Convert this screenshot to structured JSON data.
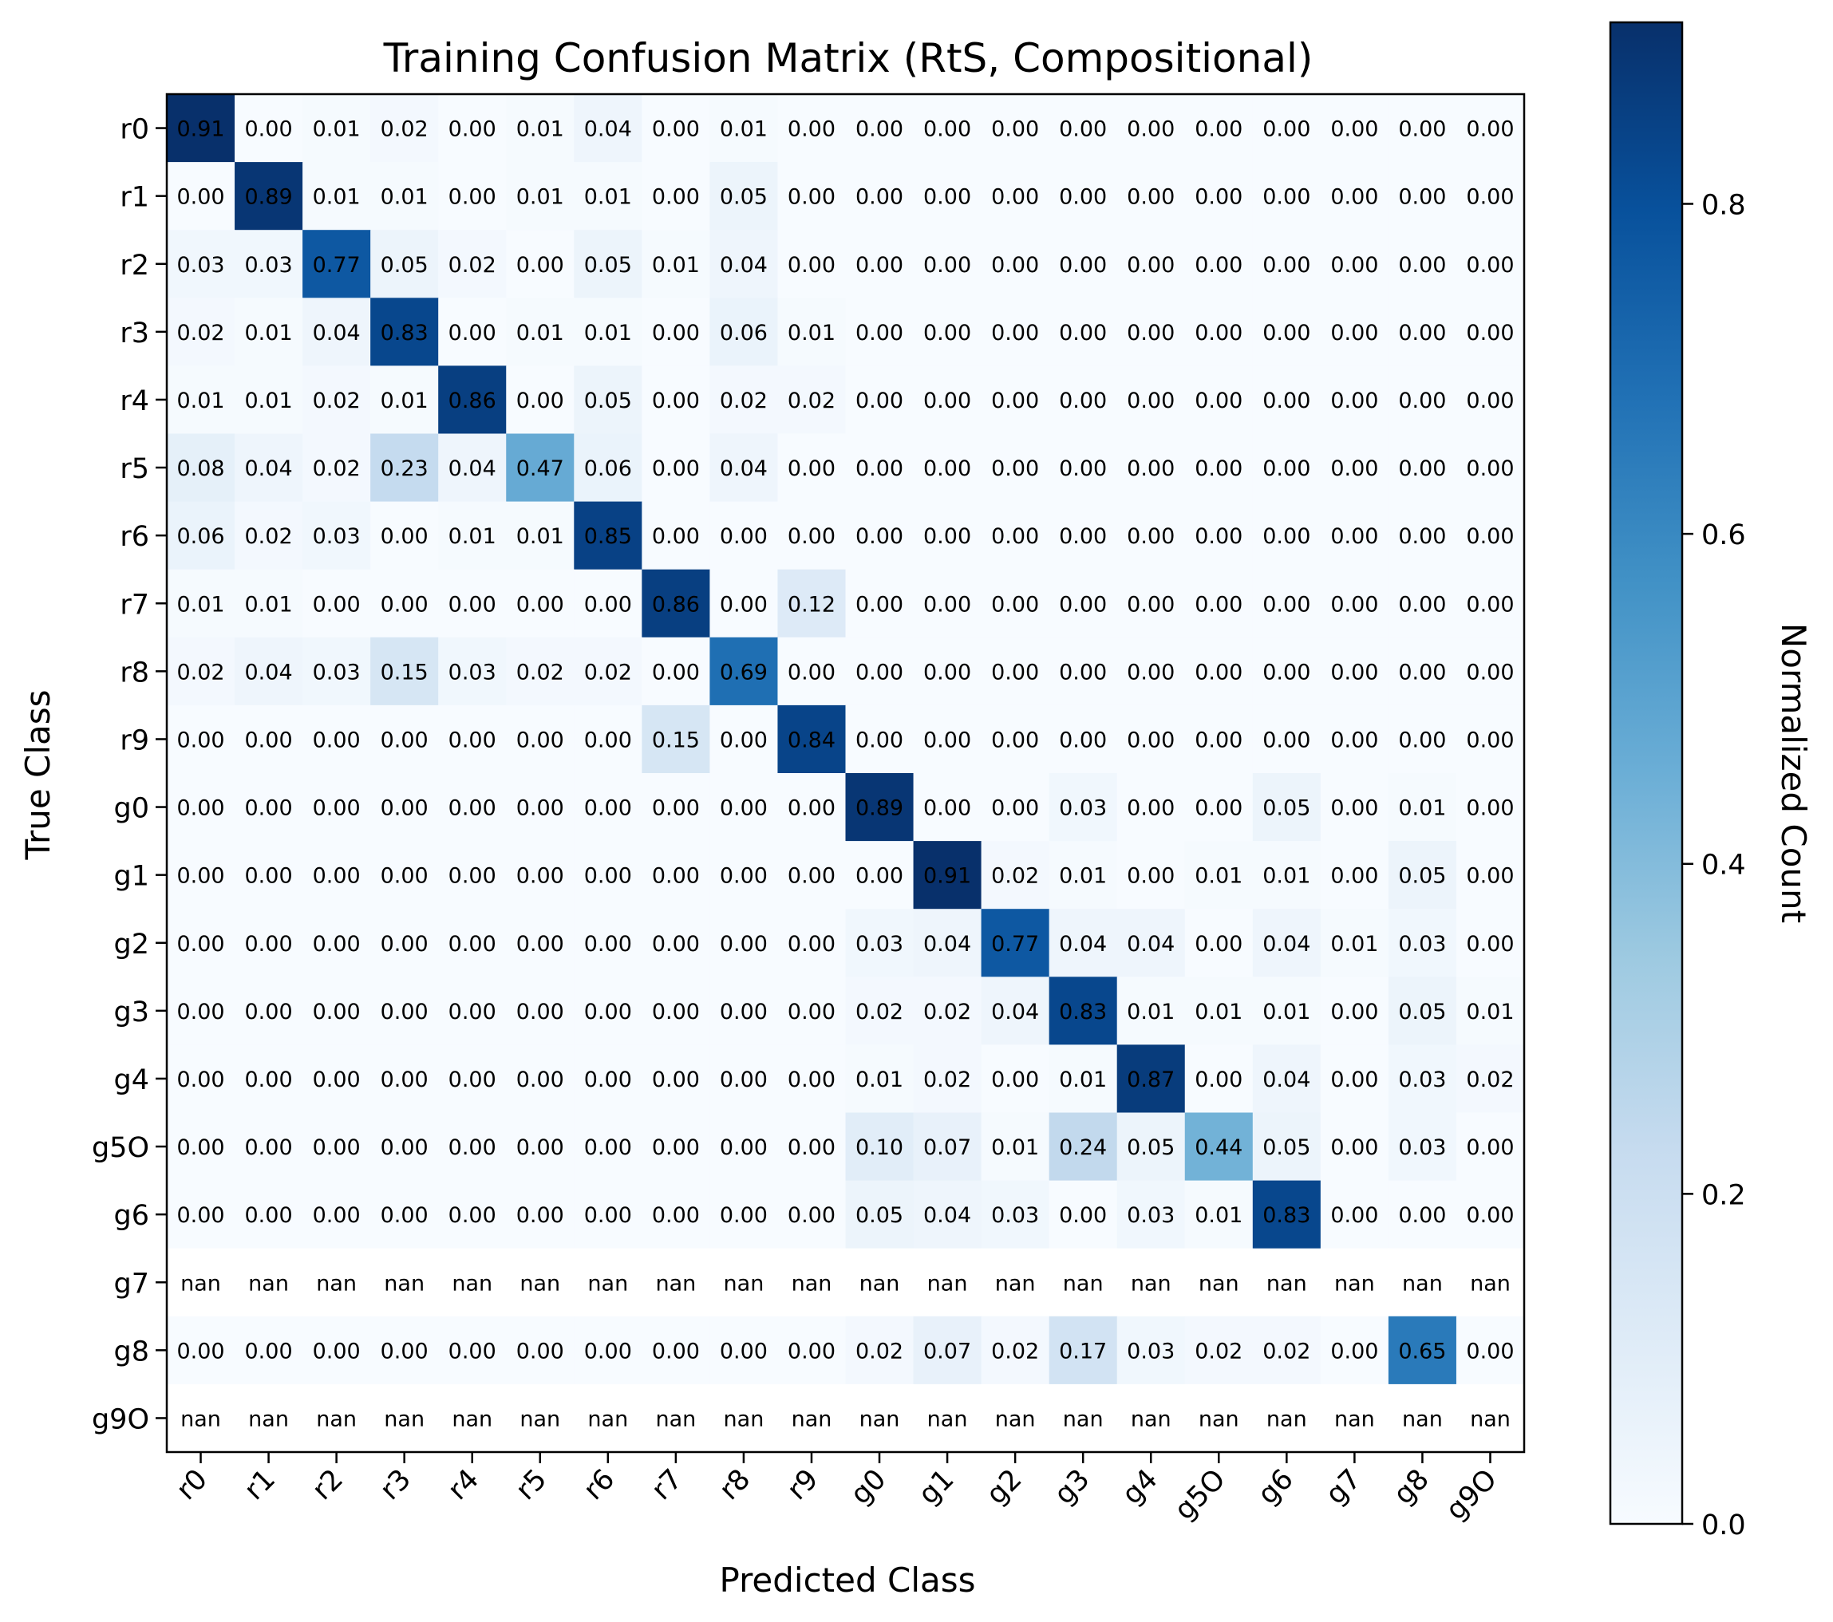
{
  "chart_data": {
    "type": "heatmap",
    "title": "Training Confusion Matrix (RtS, Compositional)",
    "xlabel": "Predicted Class",
    "ylabel": "True Class",
    "colorbar_label": "Normalized Count",
    "colormap": "Blues",
    "color_low": "#f7fbff",
    "color_high": "#08306b",
    "vlim": [
      0.0,
      0.91
    ],
    "colorbar_ticks": [
      "0.0",
      "0.2",
      "0.4",
      "0.6",
      "0.8"
    ],
    "x_categories": [
      "r0",
      "r1",
      "r2",
      "r3",
      "r4",
      "r5",
      "r6",
      "r7",
      "r8",
      "r9",
      "g0",
      "g1",
      "g2",
      "g3",
      "g4",
      "g5O",
      "g6",
      "g7",
      "g8",
      "g9O"
    ],
    "y_categories": [
      "r0",
      "r1",
      "r2",
      "r3",
      "r4",
      "r5",
      "r6",
      "r7",
      "r8",
      "r9",
      "g0",
      "g1",
      "g2",
      "g3",
      "g4",
      "g5O",
      "g6",
      "g7",
      "g8",
      "g9O"
    ],
    "values": [
      [
        0.91,
        0.0,
        0.01,
        0.02,
        0.0,
        0.01,
        0.04,
        0.0,
        0.01,
        0.0,
        0.0,
        0.0,
        0.0,
        0.0,
        0.0,
        0.0,
        0.0,
        0.0,
        0.0,
        0.0
      ],
      [
        0.0,
        0.89,
        0.01,
        0.01,
        0.0,
        0.01,
        0.01,
        0.0,
        0.05,
        0.0,
        0.0,
        0.0,
        0.0,
        0.0,
        0.0,
        0.0,
        0.0,
        0.0,
        0.0,
        0.0
      ],
      [
        0.03,
        0.03,
        0.77,
        0.05,
        0.02,
        0.0,
        0.05,
        0.01,
        0.04,
        0.0,
        0.0,
        0.0,
        0.0,
        0.0,
        0.0,
        0.0,
        0.0,
        0.0,
        0.0,
        0.0
      ],
      [
        0.02,
        0.01,
        0.04,
        0.83,
        0.0,
        0.01,
        0.01,
        0.0,
        0.06,
        0.01,
        0.0,
        0.0,
        0.0,
        0.0,
        0.0,
        0.0,
        0.0,
        0.0,
        0.0,
        0.0
      ],
      [
        0.01,
        0.01,
        0.02,
        0.01,
        0.86,
        0.0,
        0.05,
        0.0,
        0.02,
        0.02,
        0.0,
        0.0,
        0.0,
        0.0,
        0.0,
        0.0,
        0.0,
        0.0,
        0.0,
        0.0
      ],
      [
        0.08,
        0.04,
        0.02,
        0.23,
        0.04,
        0.47,
        0.06,
        0.0,
        0.04,
        0.0,
        0.0,
        0.0,
        0.0,
        0.0,
        0.0,
        0.0,
        0.0,
        0.0,
        0.0,
        0.0
      ],
      [
        0.06,
        0.02,
        0.03,
        0.0,
        0.01,
        0.01,
        0.85,
        0.0,
        0.0,
        0.0,
        0.0,
        0.0,
        0.0,
        0.0,
        0.0,
        0.0,
        0.0,
        0.0,
        0.0,
        0.0
      ],
      [
        0.01,
        0.01,
        0.0,
        0.0,
        0.0,
        0.0,
        0.0,
        0.86,
        0.0,
        0.12,
        0.0,
        0.0,
        0.0,
        0.0,
        0.0,
        0.0,
        0.0,
        0.0,
        0.0,
        0.0
      ],
      [
        0.02,
        0.04,
        0.03,
        0.15,
        0.03,
        0.02,
        0.02,
        0.0,
        0.69,
        0.0,
        0.0,
        0.0,
        0.0,
        0.0,
        0.0,
        0.0,
        0.0,
        0.0,
        0.0,
        0.0
      ],
      [
        0.0,
        0.0,
        0.0,
        0.0,
        0.0,
        0.0,
        0.0,
        0.15,
        0.0,
        0.84,
        0.0,
        0.0,
        0.0,
        0.0,
        0.0,
        0.0,
        0.0,
        0.0,
        0.0,
        0.0
      ],
      [
        0.0,
        0.0,
        0.0,
        0.0,
        0.0,
        0.0,
        0.0,
        0.0,
        0.0,
        0.0,
        0.89,
        0.0,
        0.0,
        0.03,
        0.0,
        0.0,
        0.05,
        0.0,
        0.01,
        0.0
      ],
      [
        0.0,
        0.0,
        0.0,
        0.0,
        0.0,
        0.0,
        0.0,
        0.0,
        0.0,
        0.0,
        0.0,
        0.91,
        0.02,
        0.01,
        0.0,
        0.01,
        0.01,
        0.0,
        0.05,
        0.0
      ],
      [
        0.0,
        0.0,
        0.0,
        0.0,
        0.0,
        0.0,
        0.0,
        0.0,
        0.0,
        0.0,
        0.03,
        0.04,
        0.77,
        0.04,
        0.04,
        0.0,
        0.04,
        0.01,
        0.03,
        0.0
      ],
      [
        0.0,
        0.0,
        0.0,
        0.0,
        0.0,
        0.0,
        0.0,
        0.0,
        0.0,
        0.0,
        0.02,
        0.02,
        0.04,
        0.83,
        0.01,
        0.01,
        0.01,
        0.0,
        0.05,
        0.01
      ],
      [
        0.0,
        0.0,
        0.0,
        0.0,
        0.0,
        0.0,
        0.0,
        0.0,
        0.0,
        0.0,
        0.01,
        0.02,
        0.0,
        0.01,
        0.87,
        0.0,
        0.04,
        0.0,
        0.03,
        0.02
      ],
      [
        0.0,
        0.0,
        0.0,
        0.0,
        0.0,
        0.0,
        0.0,
        0.0,
        0.0,
        0.0,
        0.1,
        0.07,
        0.01,
        0.24,
        0.05,
        0.44,
        0.05,
        0.0,
        0.03,
        0.0
      ],
      [
        0.0,
        0.0,
        0.0,
        0.0,
        0.0,
        0.0,
        0.0,
        0.0,
        0.0,
        0.0,
        0.05,
        0.04,
        0.03,
        0.0,
        0.03,
        0.01,
        0.83,
        0.0,
        0.0,
        0.0
      ],
      [
        "nan",
        "nan",
        "nan",
        "nan",
        "nan",
        "nan",
        "nan",
        "nan",
        "nan",
        "nan",
        "nan",
        "nan",
        "nan",
        "nan",
        "nan",
        "nan",
        "nan",
        "nan",
        "nan",
        "nan"
      ],
      [
        0.0,
        0.0,
        0.0,
        0.0,
        0.0,
        0.0,
        0.0,
        0.0,
        0.0,
        0.0,
        0.02,
        0.07,
        0.02,
        0.17,
        0.03,
        0.02,
        0.02,
        0.0,
        0.65,
        0.0
      ],
      [
        "nan",
        "nan",
        "nan",
        "nan",
        "nan",
        "nan",
        "nan",
        "nan",
        "nan",
        "nan",
        "nan",
        "nan",
        "nan",
        "nan",
        "nan",
        "nan",
        "nan",
        "nan",
        "nan",
        "nan"
      ]
    ]
  }
}
